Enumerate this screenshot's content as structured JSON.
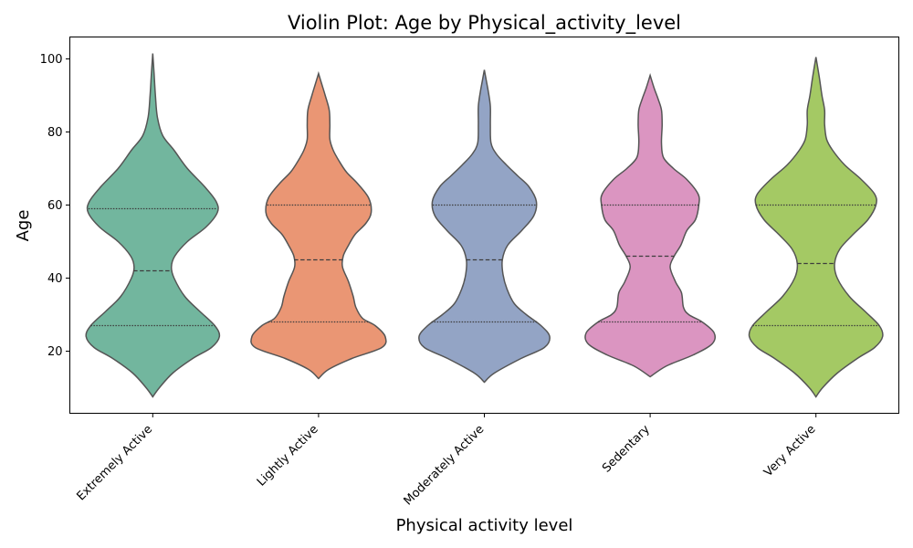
{
  "chart_data": {
    "type": "violin",
    "title": "Violin Plot: Age by Physical_activity_level",
    "xlabel": "Physical activity level",
    "ylabel": "Age",
    "ylim": [
      3,
      106
    ],
    "yticks": [
      20,
      40,
      60,
      80,
      100
    ],
    "grid": false,
    "legend": "none",
    "categories": [
      "Extremely Active",
      "Lightly Active",
      "Moderately Active",
      "Sedentary",
      "Very Active"
    ],
    "colors": [
      "#72b69e",
      "#ea9674",
      "#93a4c5",
      "#db95c1",
      "#a4c964"
    ],
    "outline_color": "#555555",
    "series": [
      {
        "category": "Extremely Active",
        "min": 7.5,
        "max": 101.5,
        "quartiles": [
          27,
          42,
          59
        ],
        "profile": [
          [
            7.5,
            0.0
          ],
          [
            10,
            0.1
          ],
          [
            14,
            0.3
          ],
          [
            18,
            0.6
          ],
          [
            21,
            0.88
          ],
          [
            24,
            1.0
          ],
          [
            27,
            0.93
          ],
          [
            31,
            0.7
          ],
          [
            35,
            0.48
          ],
          [
            40,
            0.32
          ],
          [
            43,
            0.28
          ],
          [
            46,
            0.33
          ],
          [
            50,
            0.52
          ],
          [
            54,
            0.8
          ],
          [
            58,
            0.97
          ],
          [
            61,
            0.95
          ],
          [
            65,
            0.78
          ],
          [
            70,
            0.52
          ],
          [
            75,
            0.32
          ],
          [
            79,
            0.15
          ],
          [
            84,
            0.07
          ],
          [
            90,
            0.04
          ],
          [
            96,
            0.02
          ],
          [
            101.5,
            0.0
          ]
        ]
      },
      {
        "category": "Lightly Active",
        "min": 12.5,
        "max": 96,
        "quartiles": [
          28,
          45,
          60
        ],
        "profile": [
          [
            12.5,
            0.0
          ],
          [
            15,
            0.15
          ],
          [
            18,
            0.5
          ],
          [
            21,
            0.95
          ],
          [
            24,
            1.0
          ],
          [
            27,
            0.85
          ],
          [
            29,
            0.66
          ],
          [
            32,
            0.56
          ],
          [
            35,
            0.52
          ],
          [
            39,
            0.45
          ],
          [
            43,
            0.36
          ],
          [
            46,
            0.37
          ],
          [
            49,
            0.45
          ],
          [
            52,
            0.55
          ],
          [
            55,
            0.71
          ],
          [
            58,
            0.79
          ],
          [
            62,
            0.75
          ],
          [
            66,
            0.58
          ],
          [
            69,
            0.42
          ],
          [
            72,
            0.31
          ],
          [
            75,
            0.22
          ],
          [
            78,
            0.17
          ],
          [
            82,
            0.17
          ],
          [
            86,
            0.16
          ],
          [
            90,
            0.1
          ],
          [
            93,
            0.05
          ],
          [
            96,
            0.0
          ]
        ]
      },
      {
        "category": "Moderately Active",
        "min": 11.5,
        "max": 97,
        "quartiles": [
          28,
          45,
          60
        ],
        "profile": [
          [
            11.5,
            0.0
          ],
          [
            14,
            0.15
          ],
          [
            18,
            0.55
          ],
          [
            21,
            0.9
          ],
          [
            24,
            0.98
          ],
          [
            27,
            0.85
          ],
          [
            30,
            0.63
          ],
          [
            33,
            0.45
          ],
          [
            37,
            0.34
          ],
          [
            41,
            0.28
          ],
          [
            45,
            0.27
          ],
          [
            49,
            0.35
          ],
          [
            53,
            0.56
          ],
          [
            57,
            0.74
          ],
          [
            61,
            0.78
          ],
          [
            65,
            0.67
          ],
          [
            68,
            0.5
          ],
          [
            71,
            0.33
          ],
          [
            74,
            0.18
          ],
          [
            77,
            0.1
          ],
          [
            82,
            0.09
          ],
          [
            87,
            0.09
          ],
          [
            91,
            0.06
          ],
          [
            94,
            0.03
          ],
          [
            97,
            0.0
          ]
        ]
      },
      {
        "category": "Sedentary",
        "min": 13,
        "max": 95.5,
        "quartiles": [
          28,
          46,
          60
        ],
        "profile": [
          [
            13,
            0.0
          ],
          [
            16,
            0.25
          ],
          [
            19,
            0.65
          ],
          [
            22,
            0.93
          ],
          [
            25,
            0.96
          ],
          [
            28,
            0.78
          ],
          [
            30,
            0.58
          ],
          [
            32,
            0.5
          ],
          [
            36,
            0.47
          ],
          [
            39,
            0.38
          ],
          [
            43,
            0.3
          ],
          [
            46,
            0.36
          ],
          [
            49,
            0.46
          ],
          [
            53,
            0.55
          ],
          [
            56,
            0.68
          ],
          [
            60,
            0.73
          ],
          [
            63,
            0.72
          ],
          [
            67,
            0.55
          ],
          [
            70,
            0.35
          ],
          [
            73,
            0.2
          ],
          [
            77,
            0.17
          ],
          [
            82,
            0.18
          ],
          [
            86,
            0.17
          ],
          [
            89,
            0.12
          ],
          [
            92,
            0.06
          ],
          [
            95.5,
            0.0
          ]
        ]
      },
      {
        "category": "Very Active",
        "min": 7.5,
        "max": 100.5,
        "quartiles": [
          27,
          44,
          60
        ],
        "profile": [
          [
            7.5,
            0.0
          ],
          [
            10,
            0.1
          ],
          [
            14,
            0.32
          ],
          [
            18,
            0.62
          ],
          [
            21,
            0.88
          ],
          [
            24,
            1.0
          ],
          [
            27,
            0.95
          ],
          [
            31,
            0.73
          ],
          [
            35,
            0.5
          ],
          [
            40,
            0.32
          ],
          [
            44,
            0.28
          ],
          [
            48,
            0.36
          ],
          [
            52,
            0.56
          ],
          [
            56,
            0.78
          ],
          [
            60,
            0.9
          ],
          [
            63,
            0.88
          ],
          [
            67,
            0.68
          ],
          [
            71,
            0.43
          ],
          [
            75,
            0.25
          ],
          [
            78,
            0.16
          ],
          [
            82,
            0.13
          ],
          [
            86,
            0.13
          ],
          [
            90,
            0.09
          ],
          [
            95,
            0.05
          ],
          [
            100.5,
            0.0
          ]
        ]
      }
    ]
  }
}
